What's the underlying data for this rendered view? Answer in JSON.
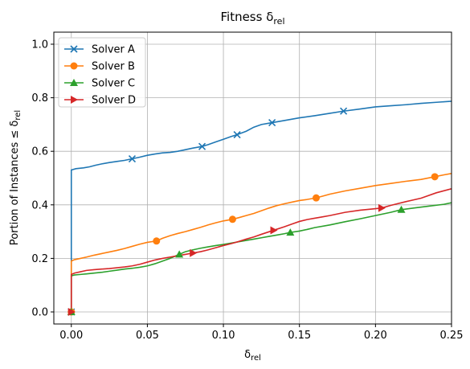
{
  "chart_data": {
    "type": "line",
    "title": "Fitness δ",
    "title_sub": "rel",
    "xlabel": "δ",
    "xlabel_sub": "rel",
    "ylabel": "Portion of Instances ≤ δ",
    "ylabel_sub": "rel",
    "xlim": [
      -0.0115,
      0.25
    ],
    "ylim": [
      -0.045,
      1.045
    ],
    "xticks": [
      0.0,
      0.05,
      0.1,
      0.15,
      0.2,
      0.25
    ],
    "xtick_labels": [
      "0.00",
      "0.05",
      "0.10",
      "0.15",
      "0.20",
      "0.25"
    ],
    "yticks": [
      0.0,
      0.2,
      0.4,
      0.6,
      0.8,
      1.0
    ],
    "ytick_labels": [
      "0.0",
      "0.2",
      "0.4",
      "0.6",
      "0.8",
      "1.0"
    ],
    "grid": true,
    "legend_position": "top-left",
    "series": [
      {
        "name": "Solver A",
        "color": "#1f77b4",
        "marker": "x",
        "x": [
          0.0,
          0.0,
          0.0,
          0.0,
          0.003,
          0.008,
          0.012,
          0.016,
          0.02,
          0.025,
          0.03,
          0.035,
          0.04,
          0.045,
          0.05,
          0.055,
          0.06,
          0.065,
          0.07,
          0.075,
          0.08,
          0.086,
          0.09,
          0.095,
          0.1,
          0.105,
          0.109,
          0.115,
          0.12,
          0.125,
          0.132,
          0.14,
          0.15,
          0.16,
          0.17,
          0.179,
          0.19,
          0.2,
          0.21,
          0.22,
          0.23,
          0.24,
          0.25
        ],
        "y": [
          0.0,
          0.2,
          0.45,
          0.53,
          0.535,
          0.538,
          0.542,
          0.548,
          0.553,
          0.558,
          0.562,
          0.566,
          0.572,
          0.578,
          0.585,
          0.59,
          0.594,
          0.596,
          0.6,
          0.606,
          0.612,
          0.618,
          0.625,
          0.635,
          0.645,
          0.655,
          0.662,
          0.675,
          0.69,
          0.7,
          0.707,
          0.715,
          0.725,
          0.733,
          0.742,
          0.75,
          0.758,
          0.766,
          0.77,
          0.774,
          0.779,
          0.783,
          0.787
        ],
        "marker_x": [
          0.0,
          0.04,
          0.086,
          0.109,
          0.132,
          0.179
        ],
        "marker_y": [
          0.0,
          0.572,
          0.618,
          0.662,
          0.707,
          0.75
        ]
      },
      {
        "name": "Solver B",
        "color": "#ff7f0e",
        "marker": "o",
        "x": [
          0.0,
          0.0,
          0.0,
          0.002,
          0.006,
          0.01,
          0.015,
          0.02,
          0.025,
          0.03,
          0.035,
          0.04,
          0.045,
          0.05,
          0.056,
          0.06,
          0.065,
          0.07,
          0.075,
          0.08,
          0.085,
          0.09,
          0.095,
          0.1,
          0.106,
          0.11,
          0.115,
          0.12,
          0.125,
          0.13,
          0.135,
          0.14,
          0.145,
          0.15,
          0.155,
          0.161,
          0.165,
          0.17,
          0.18,
          0.19,
          0.2,
          0.21,
          0.22,
          0.23,
          0.239,
          0.245,
          0.25
        ],
        "y": [
          0.0,
          0.18,
          0.19,
          0.195,
          0.2,
          0.205,
          0.212,
          0.218,
          0.224,
          0.23,
          0.237,
          0.245,
          0.253,
          0.26,
          0.265,
          0.275,
          0.285,
          0.293,
          0.3,
          0.308,
          0.316,
          0.325,
          0.333,
          0.34,
          0.346,
          0.352,
          0.36,
          0.368,
          0.378,
          0.388,
          0.397,
          0.404,
          0.41,
          0.416,
          0.42,
          0.426,
          0.432,
          0.44,
          0.452,
          0.462,
          0.472,
          0.48,
          0.488,
          0.495,
          0.505,
          0.512,
          0.517
        ],
        "marker_x": [
          0.0,
          0.056,
          0.106,
          0.161,
          0.239
        ],
        "marker_y": [
          0.0,
          0.265,
          0.346,
          0.426,
          0.505
        ]
      },
      {
        "name": "Solver C",
        "color": "#2ca02c",
        "marker": "^",
        "x": [
          0.0,
          0.0,
          0.0,
          0.002,
          0.006,
          0.01,
          0.015,
          0.02,
          0.025,
          0.03,
          0.035,
          0.04,
          0.045,
          0.05,
          0.055,
          0.06,
          0.065,
          0.071,
          0.075,
          0.08,
          0.085,
          0.09,
          0.095,
          0.1,
          0.105,
          0.11,
          0.115,
          0.12,
          0.125,
          0.13,
          0.135,
          0.14,
          0.144,
          0.15,
          0.155,
          0.16,
          0.17,
          0.18,
          0.19,
          0.2,
          0.21,
          0.217,
          0.225,
          0.235,
          0.245,
          0.25
        ],
        "y": [
          0.0,
          0.12,
          0.135,
          0.138,
          0.14,
          0.142,
          0.145,
          0.148,
          0.152,
          0.156,
          0.16,
          0.163,
          0.167,
          0.172,
          0.18,
          0.19,
          0.2,
          0.215,
          0.225,
          0.232,
          0.238,
          0.243,
          0.248,
          0.252,
          0.257,
          0.262,
          0.267,
          0.272,
          0.277,
          0.282,
          0.287,
          0.292,
          0.297,
          0.302,
          0.308,
          0.315,
          0.325,
          0.337,
          0.348,
          0.36,
          0.372,
          0.382,
          0.388,
          0.395,
          0.402,
          0.408
        ],
        "marker_x": [
          0.0,
          0.071,
          0.144,
          0.217
        ],
        "marker_y": [
          0.0,
          0.215,
          0.297,
          0.382
        ]
      },
      {
        "name": "Solver D",
        "color": "#d62728",
        "marker": ">",
        "x": [
          0.0,
          0.0,
          0.0,
          0.002,
          0.006,
          0.01,
          0.015,
          0.02,
          0.025,
          0.03,
          0.035,
          0.04,
          0.045,
          0.05,
          0.055,
          0.06,
          0.065,
          0.07,
          0.075,
          0.08,
          0.085,
          0.09,
          0.095,
          0.1,
          0.105,
          0.11,
          0.115,
          0.12,
          0.125,
          0.133,
          0.14,
          0.145,
          0.15,
          0.155,
          0.16,
          0.165,
          0.17,
          0.18,
          0.19,
          0.204,
          0.21,
          0.22,
          0.23,
          0.24,
          0.25
        ],
        "y": [
          0.0,
          0.13,
          0.14,
          0.145,
          0.15,
          0.155,
          0.158,
          0.16,
          0.162,
          0.165,
          0.168,
          0.172,
          0.178,
          0.186,
          0.194,
          0.2,
          0.205,
          0.21,
          0.215,
          0.22,
          0.225,
          0.232,
          0.24,
          0.248,
          0.255,
          0.263,
          0.272,
          0.28,
          0.29,
          0.305,
          0.318,
          0.328,
          0.338,
          0.345,
          0.35,
          0.355,
          0.36,
          0.372,
          0.38,
          0.388,
          0.398,
          0.412,
          0.425,
          0.445,
          0.46
        ],
        "marker_x": [
          0.0,
          0.08,
          0.133,
          0.204
        ],
        "marker_y": [
          0.0,
          0.22,
          0.305,
          0.388
        ]
      }
    ]
  }
}
